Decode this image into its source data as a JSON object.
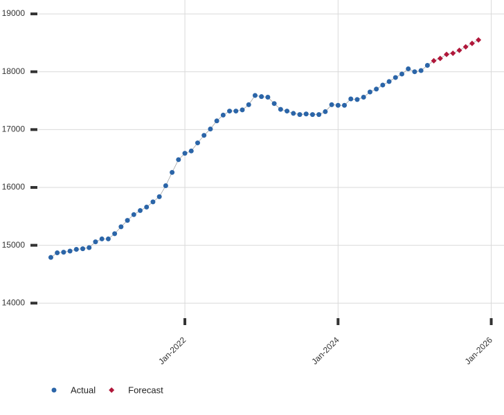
{
  "chart_data": {
    "type": "line",
    "series": [
      {
        "name": "Actual",
        "color": "#2b65a8",
        "marker": "circle",
        "x": [
          "2020-04",
          "2020-05",
          "2020-06",
          "2020-07",
          "2020-08",
          "2020-09",
          "2020-10",
          "2020-11",
          "2020-12",
          "2021-01",
          "2021-02",
          "2021-03",
          "2021-04",
          "2021-05",
          "2021-06",
          "2021-07",
          "2021-08",
          "2021-09",
          "2021-10",
          "2021-11",
          "2021-12",
          "2022-01",
          "2022-02",
          "2022-03",
          "2022-04",
          "2022-05",
          "2022-06",
          "2022-07",
          "2022-08",
          "2022-09",
          "2022-10",
          "2022-11",
          "2022-12",
          "2023-01",
          "2023-02",
          "2023-03",
          "2023-04",
          "2023-05",
          "2023-06",
          "2023-07",
          "2023-08",
          "2023-09",
          "2023-10",
          "2023-11",
          "2023-12",
          "2024-01",
          "2024-02",
          "2024-03",
          "2024-04",
          "2024-05",
          "2024-06",
          "2024-07",
          "2024-08",
          "2024-09",
          "2024-10",
          "2024-11",
          "2024-12",
          "2025-01",
          "2025-02",
          "2025-03"
        ],
        "values": [
          14790,
          14870,
          14880,
          14900,
          14930,
          14940,
          14960,
          15060,
          15110,
          15110,
          15200,
          15320,
          15430,
          15530,
          15600,
          15660,
          15750,
          15840,
          16030,
          16260,
          16480,
          16590,
          16630,
          16770,
          16900,
          17010,
          17150,
          17250,
          17320,
          17320,
          17340,
          17430,
          17590,
          17570,
          17560,
          17450,
          17350,
          17320,
          17280,
          17260,
          17270,
          17260,
          17260,
          17310,
          17430,
          17420,
          17420,
          17530,
          17520,
          17560,
          17650,
          17700,
          17770,
          17830,
          17900,
          17960,
          18050,
          18000,
          18020,
          18110
        ]
      },
      {
        "name": "Forecast",
        "color": "#b0173a",
        "marker": "diamond",
        "x": [
          "2025-04",
          "2025-05",
          "2025-06",
          "2025-07",
          "2025-08",
          "2025-09",
          "2025-10",
          "2025-11"
        ],
        "values": [
          18190,
          18230,
          18300,
          18320,
          18370,
          18430,
          18490,
          18550
        ]
      }
    ],
    "xlim": [
      "2020-02",
      "2026-03"
    ],
    "xticks": [
      {
        "value": "2022-01",
        "label": "Jan-2022"
      },
      {
        "value": "2024-01",
        "label": "Jan-2024"
      },
      {
        "value": "2026-01",
        "label": "Jan-2026"
      }
    ],
    "ylim": [
      13740,
      19240
    ],
    "yticks": [
      14000,
      15000,
      16000,
      17000,
      18000,
      19000
    ],
    "grid": true,
    "legend": "bottom-left"
  }
}
